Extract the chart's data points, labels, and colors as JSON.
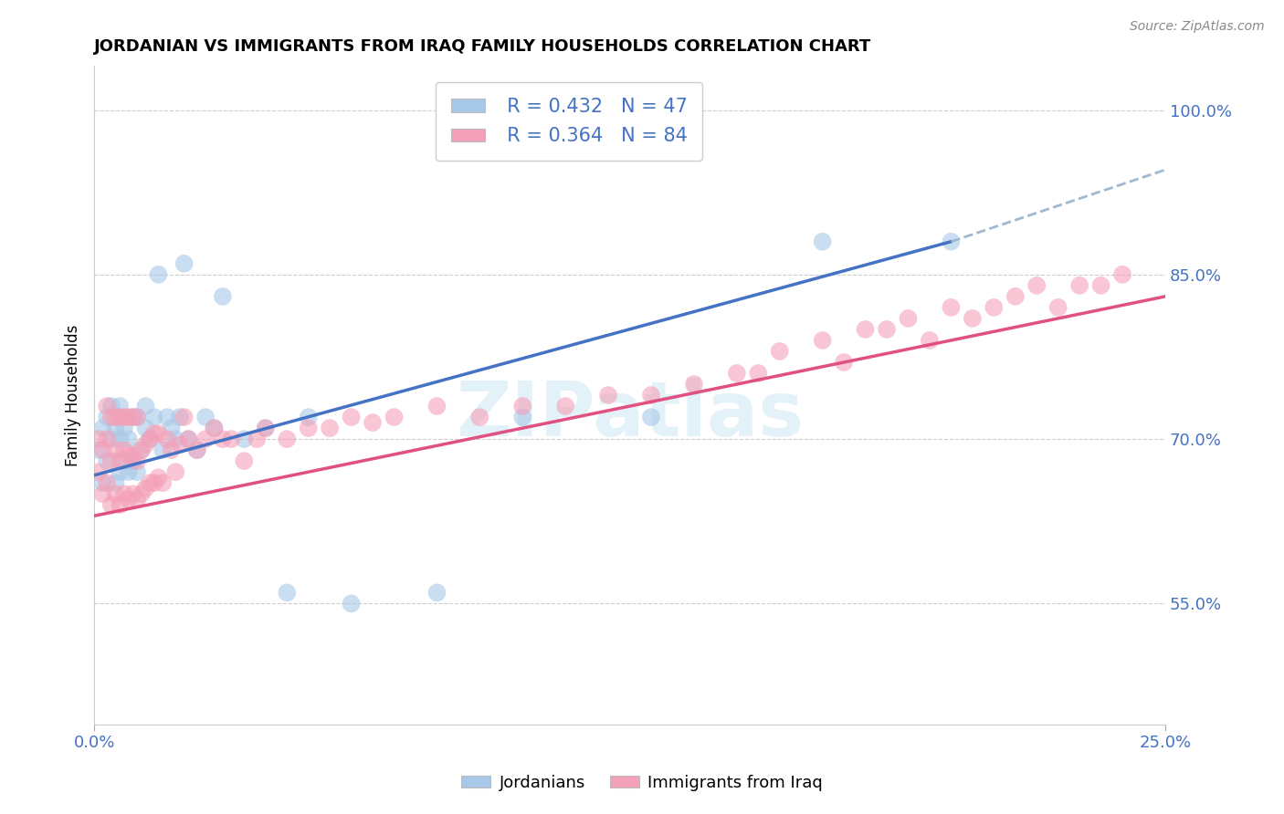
{
  "title": "JORDANIAN VS IMMIGRANTS FROM IRAQ FAMILY HOUSEHOLDS CORRELATION CHART",
  "source": "Source: ZipAtlas.com",
  "ylabel_label": "Family Households",
  "xlim": [
    0.0,
    0.25
  ],
  "ylim": [
    0.44,
    1.04
  ],
  "color_jordanian": "#A8C8E8",
  "color_iraq": "#F4A0B8",
  "color_line1": "#4472C4",
  "color_line2": "#E05080",
  "color_dash": "#A0B8D0",
  "watermark": "ZIPatlas",
  "jordanian_x": [
    0.001,
    0.002,
    0.002,
    0.003,
    0.003,
    0.004,
    0.004,
    0.005,
    0.005,
    0.006,
    0.006,
    0.006,
    0.007,
    0.007,
    0.008,
    0.008,
    0.009,
    0.009,
    0.01,
    0.01,
    0.011,
    0.012,
    0.012,
    0.013,
    0.014,
    0.015,
    0.016,
    0.017,
    0.018,
    0.019,
    0.02,
    0.021,
    0.022,
    0.024,
    0.026,
    0.028,
    0.03,
    0.035,
    0.04,
    0.045,
    0.05,
    0.06,
    0.08,
    0.1,
    0.13,
    0.17,
    0.2
  ],
  "jordanian_y": [
    0.69,
    0.66,
    0.71,
    0.68,
    0.72,
    0.7,
    0.73,
    0.66,
    0.71,
    0.67,
    0.7,
    0.73,
    0.68,
    0.71,
    0.67,
    0.7,
    0.68,
    0.72,
    0.67,
    0.72,
    0.69,
    0.71,
    0.73,
    0.7,
    0.72,
    0.85,
    0.69,
    0.72,
    0.71,
    0.7,
    0.72,
    0.86,
    0.7,
    0.69,
    0.72,
    0.71,
    0.83,
    0.7,
    0.71,
    0.56,
    0.72,
    0.55,
    0.56,
    0.72,
    0.72,
    0.88,
    0.88
  ],
  "iraq_x": [
    0.001,
    0.001,
    0.002,
    0.002,
    0.003,
    0.003,
    0.003,
    0.004,
    0.004,
    0.004,
    0.005,
    0.005,
    0.005,
    0.006,
    0.006,
    0.006,
    0.007,
    0.007,
    0.007,
    0.008,
    0.008,
    0.008,
    0.009,
    0.009,
    0.009,
    0.01,
    0.01,
    0.01,
    0.011,
    0.011,
    0.012,
    0.012,
    0.013,
    0.013,
    0.014,
    0.014,
    0.015,
    0.015,
    0.016,
    0.017,
    0.018,
    0.019,
    0.02,
    0.021,
    0.022,
    0.024,
    0.026,
    0.028,
    0.03,
    0.032,
    0.035,
    0.038,
    0.04,
    0.045,
    0.05,
    0.055,
    0.06,
    0.065,
    0.07,
    0.08,
    0.09,
    0.1,
    0.11,
    0.12,
    0.13,
    0.14,
    0.15,
    0.155,
    0.16,
    0.17,
    0.175,
    0.18,
    0.185,
    0.19,
    0.195,
    0.2,
    0.205,
    0.21,
    0.215,
    0.22,
    0.225,
    0.23,
    0.235,
    0.24
  ],
  "iraq_y": [
    0.67,
    0.7,
    0.65,
    0.69,
    0.66,
    0.7,
    0.73,
    0.64,
    0.68,
    0.72,
    0.65,
    0.69,
    0.72,
    0.64,
    0.68,
    0.72,
    0.65,
    0.69,
    0.72,
    0.645,
    0.685,
    0.72,
    0.65,
    0.685,
    0.72,
    0.645,
    0.68,
    0.72,
    0.65,
    0.69,
    0.655,
    0.695,
    0.66,
    0.7,
    0.66,
    0.705,
    0.665,
    0.705,
    0.66,
    0.7,
    0.69,
    0.67,
    0.695,
    0.72,
    0.7,
    0.69,
    0.7,
    0.71,
    0.7,
    0.7,
    0.68,
    0.7,
    0.71,
    0.7,
    0.71,
    0.71,
    0.72,
    0.715,
    0.72,
    0.73,
    0.72,
    0.73,
    0.73,
    0.74,
    0.74,
    0.75,
    0.76,
    0.76,
    0.78,
    0.79,
    0.77,
    0.8,
    0.8,
    0.81,
    0.79,
    0.82,
    0.81,
    0.82,
    0.83,
    0.84,
    0.82,
    0.84,
    0.84,
    0.85
  ],
  "line1_x0": 0.0,
  "line1_y0": 0.667,
  "line1_x1": 0.2,
  "line1_y1": 0.88,
  "line1_dash_x1": 0.255,
  "line1_dash_y1": 0.952,
  "line2_x0": 0.0,
  "line2_y0": 0.63,
  "line2_x1": 0.25,
  "line2_y1": 0.83
}
